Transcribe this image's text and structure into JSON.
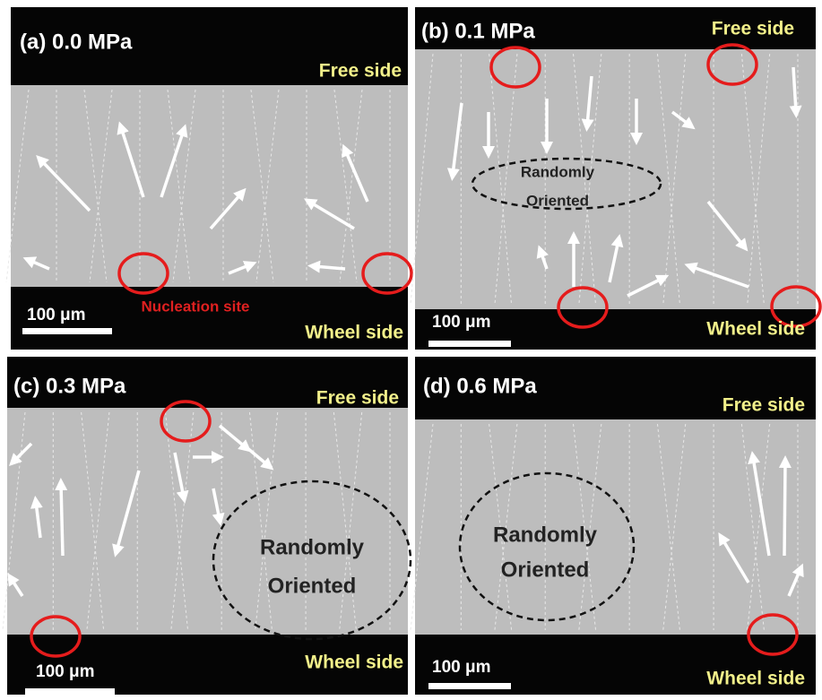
{
  "panels": [
    {
      "label": "(a) 0.0 MPa",
      "top_label": "Free side",
      "bottom_label": "Wheel side",
      "scale_label": "100 μm",
      "annotations": [
        "Nucleation site"
      ]
    },
    {
      "label": "(b) 0.1 MPa",
      "top_label": "Free side",
      "bottom_label": "Wheel side",
      "scale_label": "100 μm",
      "annotations": [
        "Randomly",
        "Oriented"
      ]
    },
    {
      "label": "(c) 0.3 MPa",
      "top_label": "Free side",
      "bottom_label": "Wheel side",
      "scale_label": "100 μm",
      "annotations": [
        "Randomly",
        "Oriented"
      ]
    },
    {
      "label": "(d) 0.6 MPa",
      "top_label": "Free side",
      "bottom_label": "Wheel side",
      "scale_label": "100 μm",
      "annotations": [
        "Randomly",
        "Oriented"
      ]
    }
  ]
}
